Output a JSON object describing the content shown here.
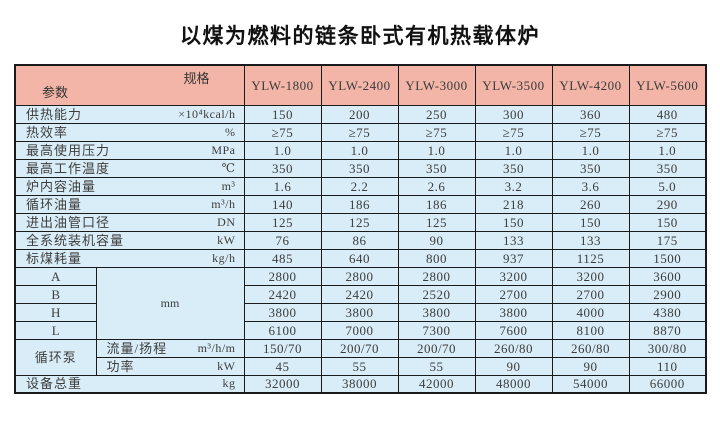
{
  "title": "以煤为燃料的链条卧式有机热载体炉",
  "colors": {
    "header_bg": "#f2b5a8",
    "row_bg": "#d9edf8",
    "border": "#1a1a1a",
    "text": "#3d3d3d"
  },
  "table": {
    "corner": {
      "top_right": "规格",
      "bottom_left": "参数"
    },
    "models": [
      "YLW-1800",
      "YLW-2400",
      "YLW-3000",
      "YLW-3500",
      "YLW-4200",
      "YLW-5600"
    ],
    "dim_unit": "mm",
    "pump_group": "循环泵",
    "rows": [
      {
        "kind": "full",
        "label": "供热能力",
        "unit": "×10⁴kcal/h",
        "values": [
          "150",
          "200",
          "250",
          "300",
          "360",
          "480"
        ]
      },
      {
        "kind": "full",
        "label": "热效率",
        "unit": "%",
        "values": [
          "≥75",
          "≥75",
          "≥75",
          "≥75",
          "≥75",
          "≥75"
        ]
      },
      {
        "kind": "full",
        "label": "最高使用压力",
        "unit": "MPa",
        "values": [
          "1.0",
          "1.0",
          "1.0",
          "1.0",
          "1.0",
          "1.0"
        ]
      },
      {
        "kind": "full",
        "label": "最高工作温度",
        "unit": "℃",
        "values": [
          "350",
          "350",
          "350",
          "350",
          "350",
          "350"
        ]
      },
      {
        "kind": "full",
        "label": "炉内容油量",
        "unit": "m³",
        "values": [
          "1.6",
          "2.2",
          "2.6",
          "3.2",
          "3.6",
          "5.0"
        ]
      },
      {
        "kind": "full",
        "label": "循环油量",
        "unit": "m³/h",
        "values": [
          "140",
          "186",
          "186",
          "218",
          "260",
          "290"
        ]
      },
      {
        "kind": "full",
        "label": "进出油管口径",
        "unit": "DN",
        "values": [
          "125",
          "125",
          "125",
          "150",
          "150",
          "150"
        ]
      },
      {
        "kind": "full",
        "label": "全系统装机容量",
        "unit": "kW",
        "values": [
          "76",
          "86",
          "90",
          "133",
          "133",
          "175"
        ]
      },
      {
        "kind": "full",
        "label": "标煤耗量",
        "unit": "kg/h",
        "values": [
          "485",
          "640",
          "800",
          "937",
          "1125",
          "1500"
        ]
      },
      {
        "kind": "dim",
        "label": "A",
        "values": [
          "2800",
          "2800",
          "2800",
          "3200",
          "3200",
          "3600"
        ]
      },
      {
        "kind": "dim",
        "label": "B",
        "values": [
          "2420",
          "2420",
          "2520",
          "2700",
          "2700",
          "2900"
        ]
      },
      {
        "kind": "dim",
        "label": "H",
        "values": [
          "3800",
          "3800",
          "3800",
          "3800",
          "4000",
          "4380"
        ]
      },
      {
        "kind": "dim",
        "label": "L",
        "values": [
          "6100",
          "7000",
          "7300",
          "7600",
          "8100",
          "8870"
        ]
      },
      {
        "kind": "pump",
        "label": "流量/扬程",
        "unit": "m³/h/m",
        "values": [
          "150/70",
          "200/70",
          "200/70",
          "260/80",
          "260/80",
          "300/80"
        ]
      },
      {
        "kind": "pump",
        "label": "功率",
        "unit": "kW",
        "values": [
          "45",
          "55",
          "55",
          "90",
          "90",
          "110"
        ]
      },
      {
        "kind": "full",
        "label": "设备总重",
        "unit": "kg",
        "values": [
          "32000",
          "38000",
          "42000",
          "48000",
          "54000",
          "66000"
        ]
      }
    ]
  }
}
